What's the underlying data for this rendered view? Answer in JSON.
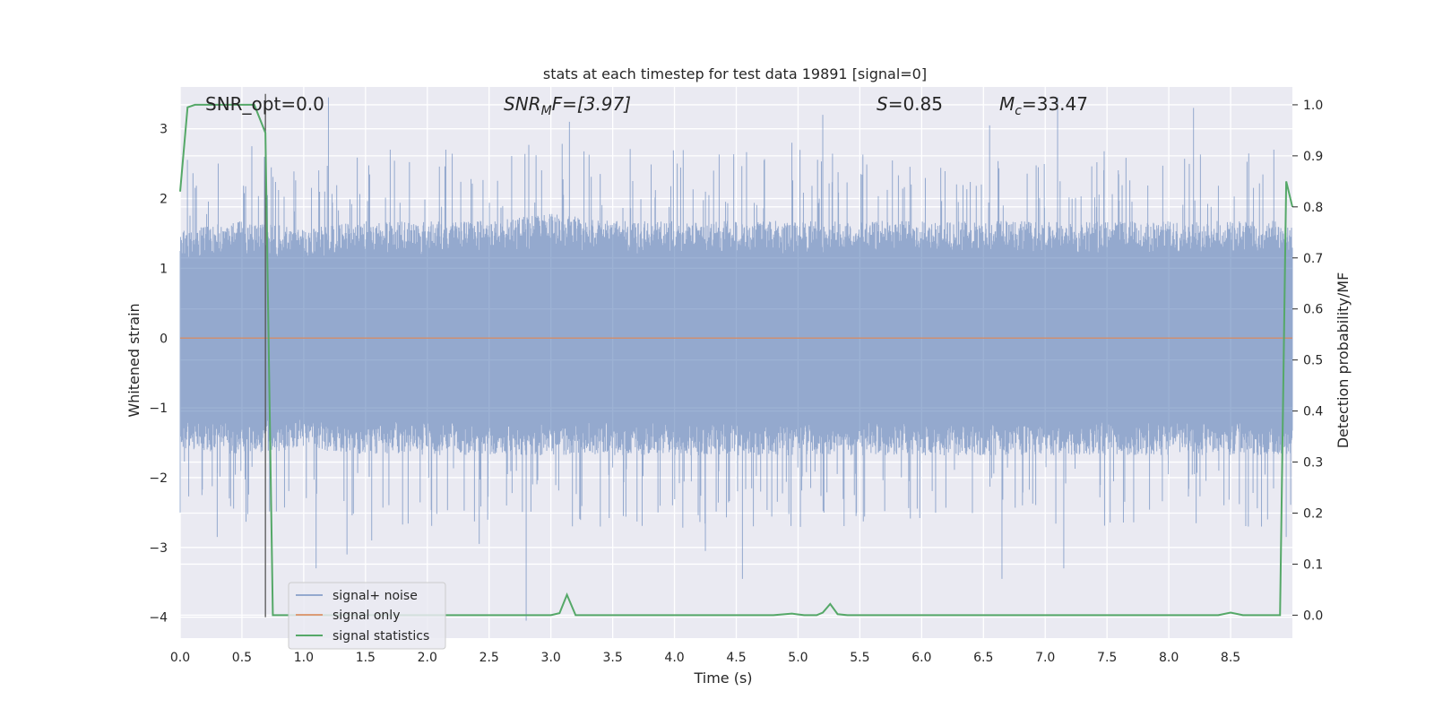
{
  "chart_data": {
    "type": "line",
    "title": "stats at each timestep for test data 19891 [signal=0]",
    "xlabel": "Time (s)",
    "ylabel_left": "Whitened strain",
    "ylabel_right": "Detection probability/MF",
    "xlim": [
      0.0,
      9.0
    ],
    "ylim_left": [
      -4.3,
      3.6
    ],
    "ylim_right": [
      -0.045,
      1.035
    ],
    "x_ticks": [
      "0.0",
      "0.5",
      "1.0",
      "1.5",
      "2.0",
      "2.5",
      "3.0",
      "3.5",
      "4.0",
      "4.5",
      "5.0",
      "5.5",
      "6.0",
      "6.5",
      "7.0",
      "7.5",
      "8.0",
      "8.5"
    ],
    "y_ticks_left": [
      "−4",
      "−3",
      "−2",
      "−1",
      "0",
      "1",
      "2",
      "3"
    ],
    "y_ticks_right": [
      "0.0",
      "0.1",
      "0.2",
      "0.3",
      "0.4",
      "0.5",
      "0.6",
      "0.7",
      "0.8",
      "0.9",
      "1.0"
    ],
    "grid": true,
    "legend_position": "lower-left",
    "annotations": {
      "snr_opt": "SNR_opt=0.0",
      "snr_mf_base": "SNR",
      "snr_mf_sub": "M",
      "snr_mf_rest": "F=[3.97]",
      "s_var": "S",
      "s_rest": "=0.85",
      "mc_var": "M",
      "mc_sub": "c",
      "mc_rest": "=33.47"
    },
    "vertical_marker_x": 0.69,
    "series": [
      {
        "name": "signal+ noise",
        "color": "#4c72b0",
        "axis": "left",
        "envelope": {
          "x": [
            0.0,
            0.5,
            1.0,
            1.5,
            2.0,
            2.5,
            3.0,
            3.5,
            4.0,
            4.5,
            5.0,
            5.5,
            6.0,
            6.5,
            7.0,
            7.5,
            8.0,
            8.5,
            9.0
          ],
          "upper_typical": [
            1.5,
            1.6,
            1.5,
            1.6,
            1.6,
            1.6,
            1.7,
            1.6,
            1.6,
            1.6,
            1.6,
            1.6,
            1.6,
            1.6,
            1.6,
            1.6,
            1.6,
            1.6,
            1.6
          ],
          "lower_typical": [
            -1.5,
            -1.6,
            -1.5,
            -1.6,
            -1.6,
            -1.6,
            -1.6,
            -1.6,
            -1.6,
            -1.6,
            -1.6,
            -1.6,
            -1.6,
            -1.6,
            -1.6,
            -1.6,
            -1.6,
            -1.6,
            -1.6
          ]
        },
        "peaks": [
          {
            "x": 0.58,
            "y": 2.75
          },
          {
            "x": 1.2,
            "y": 3.45
          },
          {
            "x": 1.7,
            "y": 2.7
          },
          {
            "x": 2.15,
            "y": 2.7
          },
          {
            "x": 3.15,
            "y": 3.1
          },
          {
            "x": 4.95,
            "y": 2.8
          },
          {
            "x": 5.2,
            "y": 3.2
          },
          {
            "x": 6.55,
            "y": 3.05
          },
          {
            "x": 7.1,
            "y": 3.45
          },
          {
            "x": 8.2,
            "y": 3.3
          },
          {
            "x": 8.85,
            "y": 2.7
          }
        ],
        "troughs": [
          {
            "x": 0.0,
            "y": -2.5
          },
          {
            "x": 0.3,
            "y": -2.85
          },
          {
            "x": 1.1,
            "y": -3.3
          },
          {
            "x": 1.35,
            "y": -3.1
          },
          {
            "x": 1.55,
            "y": -2.9
          },
          {
            "x": 2.42,
            "y": -2.95
          },
          {
            "x": 2.8,
            "y": -4.05
          },
          {
            "x": 3.4,
            "y": -2.7
          },
          {
            "x": 4.25,
            "y": -3.05
          },
          {
            "x": 4.55,
            "y": -3.45
          },
          {
            "x": 6.65,
            "y": -3.45
          },
          {
            "x": 7.15,
            "y": -3.3
          },
          {
            "x": 8.75,
            "y": -2.7
          },
          {
            "x": 8.95,
            "y": -2.85
          }
        ]
      },
      {
        "name": "signal only",
        "color": "#dd8452",
        "axis": "left",
        "x": [
          0.0,
          9.0
        ],
        "y": [
          0.0,
          0.0
        ]
      },
      {
        "name": "signal statistics",
        "color": "#55a868",
        "axis": "right",
        "x": [
          0.0,
          0.06,
          0.12,
          0.6,
          0.69,
          0.75,
          1.0,
          2.0,
          3.0,
          3.07,
          3.13,
          3.2,
          3.5,
          4.5,
          4.8,
          4.95,
          5.05,
          5.15,
          5.2,
          5.26,
          5.32,
          5.4,
          6.0,
          7.0,
          8.0,
          8.4,
          8.5,
          8.6,
          8.9,
          8.95,
          9.0
        ],
        "y": [
          0.83,
          0.995,
          1.0,
          1.0,
          0.945,
          0.0,
          0.0,
          0.0,
          0.0,
          0.004,
          0.04,
          0.0,
          0.0,
          0.0,
          0.0,
          0.003,
          0.0,
          0.0,
          0.005,
          0.022,
          0.002,
          0.0,
          0.0,
          0.0,
          0.0,
          0.0,
          0.005,
          0.0,
          0.0,
          0.85,
          0.8
        ]
      }
    ]
  }
}
